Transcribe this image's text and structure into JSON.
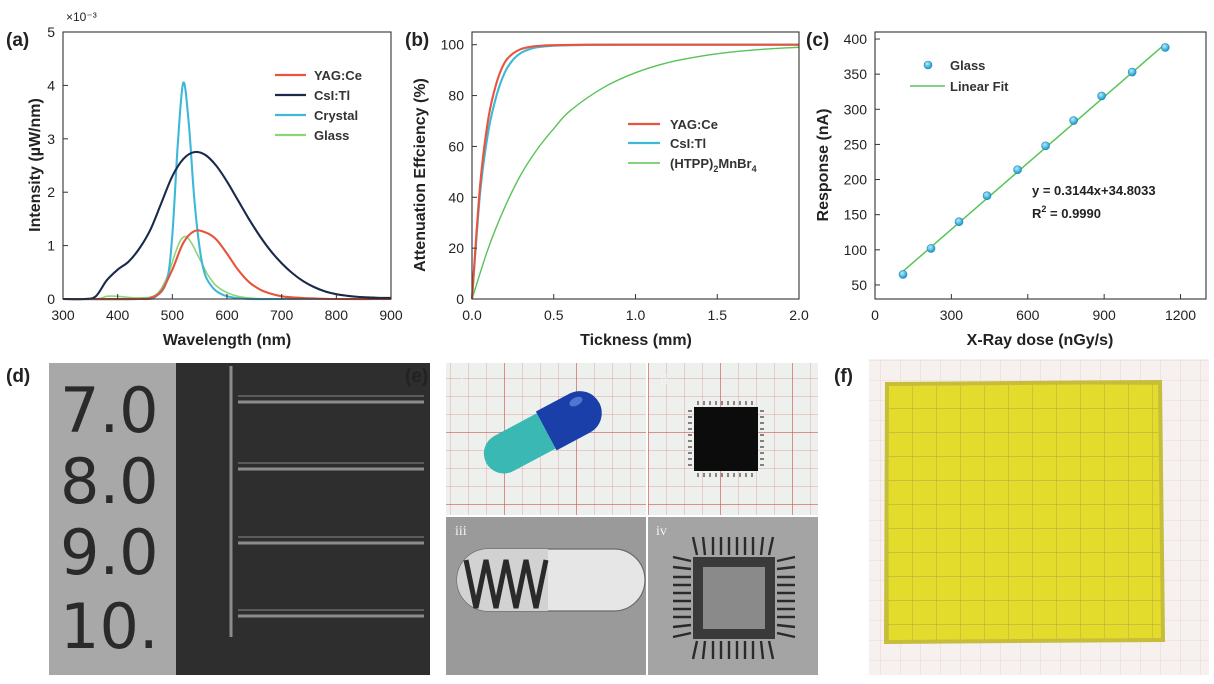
{
  "figure": {
    "panel_labels": [
      "(a)",
      "(b)",
      "(c)",
      "(d)",
      "(e)",
      "(f)"
    ],
    "photo_d": {
      "labels": [
        "7.0",
        "8.0",
        "9.0",
        "10."
      ]
    },
    "photo_e": {
      "subpanels": [
        "i",
        "ii",
        "iii",
        "iv"
      ]
    }
  },
  "chart_data": [
    {
      "id": "a",
      "type": "line",
      "xlabel": "Wavelength (nm)",
      "ylabel": "Intensity (µW/nm)",
      "scale_note": "×10⁻³",
      "xlim": [
        300,
        900
      ],
      "ylim": [
        0,
        5
      ],
      "xticks": [
        300,
        400,
        500,
        600,
        700,
        800,
        900
      ],
      "yticks": [
        0,
        1,
        2,
        3,
        4,
        5
      ],
      "legend_position": "top-right",
      "colors": {
        "YAG:Ce": "#e8533c",
        "CsI:Tl": "#1a2a4a",
        "Crystal": "#3cb8d8",
        "Glass": "#8fd37a"
      },
      "series": [
        {
          "name": "YAG:Ce",
          "x": [
            300,
            440,
            460,
            480,
            500,
            520,
            540,
            560,
            580,
            600,
            620,
            640,
            660,
            680,
            700,
            720,
            760,
            800,
            900
          ],
          "y": [
            0,
            0,
            0.02,
            0.15,
            0.55,
            1.05,
            1.27,
            1.25,
            1.12,
            0.85,
            0.55,
            0.32,
            0.18,
            0.1,
            0.05,
            0.03,
            0.01,
            0,
            0
          ]
        },
        {
          "name": "CsI:Tl",
          "x": [
            300,
            340,
            360,
            380,
            400,
            420,
            440,
            460,
            480,
            500,
            520,
            540,
            560,
            580,
            600,
            620,
            640,
            660,
            680,
            700,
            720,
            740,
            760,
            780,
            800,
            820,
            840,
            860,
            880,
            900
          ],
          "y": [
            0,
            0,
            0.05,
            0.35,
            0.55,
            0.7,
            0.95,
            1.3,
            1.8,
            2.3,
            2.62,
            2.75,
            2.7,
            2.5,
            2.2,
            1.85,
            1.5,
            1.18,
            0.9,
            0.67,
            0.48,
            0.33,
            0.22,
            0.14,
            0.09,
            0.06,
            0.04,
            0.03,
            0.02,
            0.02
          ]
        },
        {
          "name": "Crystal",
          "x": [
            300,
            440,
            470,
            490,
            500,
            510,
            520,
            530,
            540,
            550,
            560,
            575,
            590,
            610,
            640,
            700,
            900
          ],
          "y": [
            0,
            0,
            0.05,
            0.35,
            1.2,
            2.9,
            4.05,
            3.3,
            1.9,
            0.95,
            0.45,
            0.2,
            0.09,
            0.03,
            0,
            0,
            0
          ]
        },
        {
          "name": "Glass",
          "x": [
            300,
            360,
            380,
            400,
            440,
            470,
            490,
            505,
            515,
            525,
            535,
            545,
            555,
            565,
            580,
            600,
            620,
            650,
            700,
            900
          ],
          "y": [
            0,
            0,
            0.05,
            0.05,
            0.02,
            0.08,
            0.4,
            0.85,
            1.1,
            1.17,
            1.05,
            0.85,
            0.65,
            0.45,
            0.25,
            0.12,
            0.05,
            0.01,
            0,
            0
          ]
        }
      ]
    },
    {
      "id": "b",
      "type": "line",
      "xlabel": "Tickness (mm)",
      "ylabel": "Attenuation Effciency (%)",
      "xlim": [
        0,
        2
      ],
      "ylim": [
        0,
        105
      ],
      "xticks": [
        0.0,
        0.5,
        1.0,
        1.5,
        2.0
      ],
      "xtick_labels": [
        "0.0",
        "0.5",
        "1.0",
        "1.5",
        "2.0"
      ],
      "yticks": [
        0,
        20,
        40,
        60,
        80,
        100
      ],
      "legend_position": "middle-right",
      "colors": {
        "YAG:Ce": "#e8533c",
        "CsI:Tl": "#3cb8d8",
        "(HTPP)2MnBr4": "#58c458"
      },
      "series": [
        {
          "name": "YAG:Ce",
          "x": [
            0,
            0.05,
            0.1,
            0.15,
            0.2,
            0.25,
            0.3,
            0.35,
            0.4,
            0.5,
            0.7,
            1.0,
            1.5,
            2.0
          ],
          "y": [
            0,
            45,
            71,
            85,
            93,
            96.5,
            98.3,
            99.1,
            99.5,
            99.8,
            100,
            100,
            100,
            100
          ]
        },
        {
          "name": "CsI:Tl",
          "x": [
            0,
            0.05,
            0.1,
            0.15,
            0.2,
            0.25,
            0.3,
            0.35,
            0.4,
            0.5,
            0.7,
            1.0,
            1.5,
            2.0
          ],
          "y": [
            0,
            42,
            66,
            80,
            89,
            94,
            96.8,
            98.2,
            99,
            99.6,
            99.9,
            100,
            100,
            100
          ]
        },
        {
          "name": "(HTPP)2MnBr4",
          "x": [
            0,
            0.1,
            0.2,
            0.3,
            0.4,
            0.5,
            0.6,
            0.8,
            1.0,
            1.2,
            1.4,
            1.6,
            1.8,
            2.0
          ],
          "y": [
            0,
            20,
            36,
            49,
            59,
            67,
            74,
            83,
            89,
            93,
            95.5,
            97.2,
            98.3,
            99
          ]
        }
      ],
      "legend_labels": {
        "YAG:Ce": "YAG:Ce",
        "CsI:Tl": "CsI:Tl",
        "(HTPP)2MnBr4_main": "(HTPP)",
        "(HTPP)2MnBr4_sub1": "2",
        "(HTPP)2MnBr4_mid": "MnBr",
        "(HTPP)2MnBr4_sub2": "4"
      }
    },
    {
      "id": "c",
      "type": "scatter",
      "xlabel": "X-Ray dose (nGy/s)",
      "ylabel": "Response (nA)",
      "xlim": [
        0,
        1300
      ],
      "ylim": [
        30,
        410
      ],
      "xticks": [
        0,
        300,
        600,
        900,
        1200
      ],
      "yticks": [
        50,
        100,
        150,
        200,
        250,
        300,
        350,
        400
      ],
      "legend_position": "top-left",
      "colors": {
        "Glass": "#3cb0d8",
        "Linear Fit": "#58c458"
      },
      "series": [
        {
          "name": "Glass",
          "x": [
            110,
            220,
            330,
            440,
            560,
            670,
            780,
            890,
            1010,
            1140
          ],
          "y": [
            65,
            102,
            140,
            177,
            214,
            248,
            284,
            319,
            353,
            388
          ]
        },
        {
          "name": "Linear Fit",
          "x": [
            110,
            1140
          ],
          "y": [
            69.4,
            393.2
          ]
        }
      ],
      "annotation": {
        "equation": "y = 0.3144x+34.8033",
        "r2_prefix": "R",
        "r2_sup": "2",
        "r2_value": " = 0.9990"
      }
    }
  ]
}
